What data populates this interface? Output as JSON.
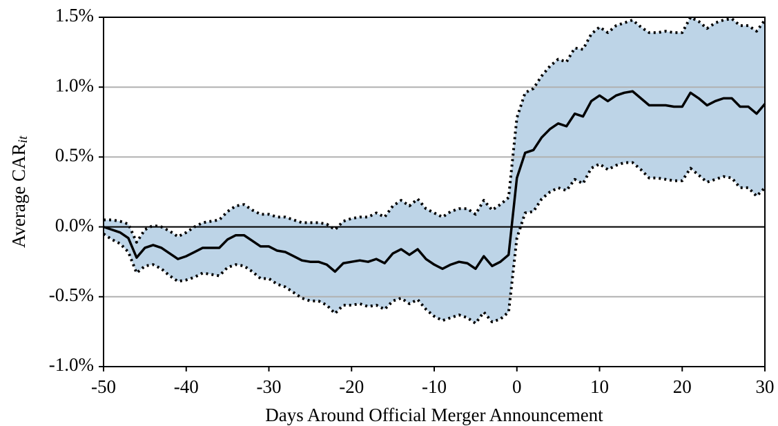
{
  "chart_data": {
    "type": "line",
    "xlabel": "Days Around Official Merger Announcement",
    "ylabel": "Average CAR",
    "ylabel_subscript": "it",
    "x": [
      -50,
      -49,
      -48,
      -47,
      -46,
      -45,
      -44,
      -43,
      -42,
      -41,
      -40,
      -39,
      -38,
      -37,
      -36,
      -35,
      -34,
      -33,
      -32,
      -31,
      -30,
      -29,
      -28,
      -27,
      -26,
      -25,
      -24,
      -23,
      -22,
      -21,
      -20,
      -19,
      -18,
      -17,
      -16,
      -15,
      -14,
      -13,
      -12,
      -11,
      -10,
      -9,
      -8,
      -7,
      -6,
      -5,
      -4,
      -3,
      -2,
      -1,
      0,
      1,
      2,
      3,
      4,
      5,
      6,
      7,
      8,
      9,
      10,
      11,
      12,
      13,
      14,
      15,
      16,
      17,
      18,
      19,
      20,
      21,
      22,
      23,
      24,
      25,
      26,
      27,
      28,
      29,
      30
    ],
    "series": [
      {
        "color": "#000000",
        "style": "dotted",
        "values": [
          0.05,
          0.05,
          0.04,
          0.02,
          -0.11,
          -0.02,
          0.01,
          0,
          -0.03,
          -0.07,
          -0.04,
          0,
          0.03,
          0.04,
          0.05,
          0.11,
          0.15,
          0.16,
          0.12,
          0.09,
          0.09,
          0.07,
          0.07,
          0.05,
          0.03,
          0.03,
          0.03,
          0.02,
          -0.02,
          0.04,
          0.06,
          0.07,
          0.07,
          0.1,
          0.07,
          0.15,
          0.19,
          0.15,
          0.2,
          0.13,
          0.1,
          0.07,
          0.11,
          0.13,
          0.13,
          0.09,
          0.19,
          0.12,
          0.16,
          0.21,
          0.78,
          0.96,
          0.99,
          1.08,
          1.15,
          1.2,
          1.18,
          1.28,
          1.27,
          1.38,
          1.43,
          1.39,
          1.44,
          1.46,
          1.48,
          1.43,
          1.39,
          1.39,
          1.4,
          1.39,
          1.39,
          1.5,
          1.47,
          1.42,
          1.46,
          1.48,
          1.49,
          1.44,
          1.44,
          1.4,
          1.48
        ]
      },
      {
        "color": "#000000",
        "style": "dotted",
        "values": [
          -0.05,
          -0.09,
          -0.12,
          -0.18,
          -0.33,
          -0.28,
          -0.27,
          -0.3,
          -0.35,
          -0.39,
          -0.38,
          -0.36,
          -0.33,
          -0.34,
          -0.35,
          -0.29,
          -0.27,
          -0.28,
          -0.32,
          -0.37,
          -0.37,
          -0.41,
          -0.43,
          -0.47,
          -0.51,
          -0.53,
          -0.53,
          -0.56,
          -0.62,
          -0.56,
          -0.56,
          -0.55,
          -0.57,
          -0.56,
          -0.59,
          -0.53,
          -0.51,
          -0.55,
          -0.52,
          -0.59,
          -0.64,
          -0.67,
          -0.65,
          -0.63,
          -0.65,
          -0.69,
          -0.61,
          -0.68,
          -0.66,
          -0.61,
          -0.08,
          0.1,
          0.11,
          0.2,
          0.25,
          0.28,
          0.26,
          0.34,
          0.31,
          0.42,
          0.45,
          0.41,
          0.44,
          0.46,
          0.46,
          0.41,
          0.35,
          0.35,
          0.34,
          0.33,
          0.33,
          0.42,
          0.37,
          0.32,
          0.34,
          0.36,
          0.35,
          0.28,
          0.28,
          0.22,
          0.28
        ]
      },
      {
        "color": "#000000",
        "style": "solid",
        "values": [
          0,
          -0.02,
          -0.04,
          -0.08,
          -0.22,
          -0.15,
          -0.13,
          -0.15,
          -0.19,
          -0.23,
          -0.21,
          -0.18,
          -0.15,
          -0.15,
          -0.15,
          -0.09,
          -0.06,
          -0.06,
          -0.1,
          -0.14,
          -0.14,
          -0.17,
          -0.18,
          -0.21,
          -0.24,
          -0.25,
          -0.25,
          -0.27,
          -0.32,
          -0.26,
          -0.25,
          -0.24,
          -0.25,
          -0.23,
          -0.26,
          -0.19,
          -0.16,
          -0.2,
          -0.16,
          -0.23,
          -0.27,
          -0.3,
          -0.27,
          -0.25,
          -0.26,
          -0.3,
          -0.21,
          -0.28,
          -0.25,
          -0.2,
          0.35,
          0.53,
          0.55,
          0.64,
          0.7,
          0.74,
          0.72,
          0.81,
          0.79,
          0.9,
          0.94,
          0.9,
          0.94,
          0.96,
          0.97,
          0.92,
          0.87,
          0.87,
          0.87,
          0.86,
          0.86,
          0.96,
          0.92,
          0.87,
          0.9,
          0.92,
          0.92,
          0.86,
          0.86,
          0.81,
          0.88
        ]
      }
    ],
    "band_color": "#bdd4e7",
    "xlim": [
      -50,
      30
    ],
    "xticks": [
      -50,
      -40,
      -30,
      -20,
      -10,
      0,
      10,
      20,
      30
    ],
    "ylim": [
      -1.0,
      1.5
    ],
    "yticks": [
      {
        "value": -1.0,
        "label": "-1.0%"
      },
      {
        "value": -0.5,
        "label": "-0.5%"
      },
      {
        "value": 0,
        "label": "0.0%"
      },
      {
        "value": 0.5,
        "label": "0.5%"
      },
      {
        "value": 1.0,
        "label": "1.0%"
      },
      {
        "value": 1.5,
        "label": "1.5%"
      }
    ],
    "grid": true,
    "zero_line": true
  }
}
